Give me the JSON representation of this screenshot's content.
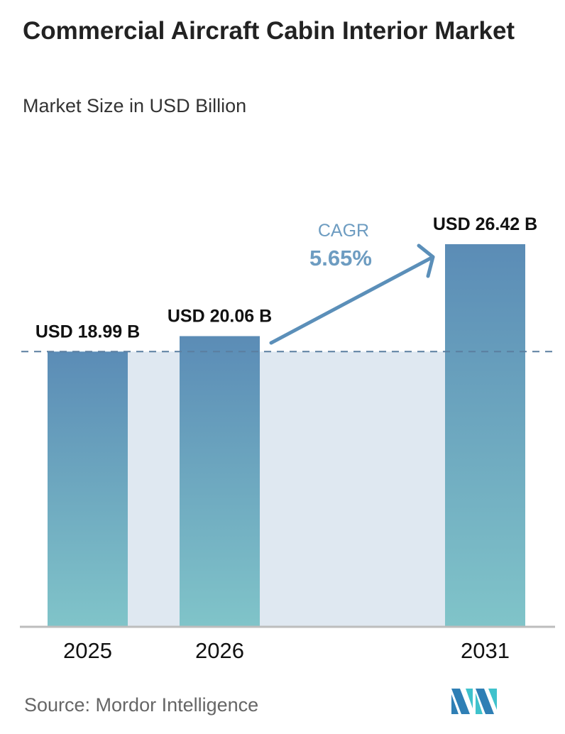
{
  "title": "Commercial Aircraft Cabin Interior Market",
  "subtitle": "Market Size in USD Billion",
  "source": "Source:  Mordor Intelligence",
  "logo_text": "Mordor Intelligence",
  "colors": {
    "bar_top": "#5b8cb6",
    "bar_bottom": "#80c4c9",
    "band": "#dfe8f1",
    "accent": "#5b8fb9"
  },
  "chart_data": {
    "type": "bar",
    "categories": [
      "2025",
      "2026",
      "2031"
    ],
    "values": [
      18.99,
      20.06,
      26.42
    ],
    "data_labels": [
      "USD 18.99 B",
      "USD 20.06 B",
      "USD 26.42 B"
    ],
    "title": "Commercial Aircraft Cabin Interior Market",
    "ylabel": "Market Size in USD Billion",
    "grid": false,
    "reference_line": 18.99,
    "annotation": {
      "label": "CAGR",
      "value": "5.65%"
    }
  }
}
